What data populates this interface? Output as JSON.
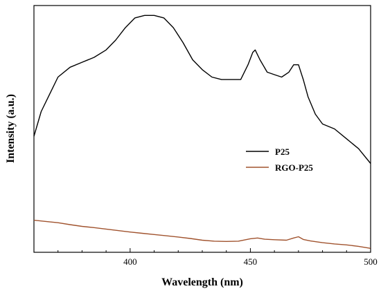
{
  "chart_data": {
    "type": "line",
    "xlabel": "Wavelength (nm)",
    "ylabel": "Intensity (a.u.)",
    "xlim": [
      360,
      500
    ],
    "ylim": [
      0,
      100
    ],
    "x_ticks": [
      400,
      450,
      500
    ],
    "y_ticks_shown": false,
    "grid": false,
    "legend": {
      "placement": "right-center"
    },
    "series": [
      {
        "name": "P25",
        "color": "#000000",
        "x": [
          360,
          363,
          366,
          370,
          375,
          380,
          385,
          390,
          394,
          398,
          402,
          406,
          410,
          414,
          418,
          422,
          426,
          430,
          434,
          438,
          442,
          446,
          449,
          451,
          452,
          454,
          457,
          460,
          463,
          466,
          468,
          470,
          472,
          474,
          477,
          480,
          485,
          490,
          495,
          500
        ],
        "y": [
          47,
          57,
          63,
          71,
          75,
          77,
          79,
          82,
          86,
          91,
          95,
          96,
          96,
          95,
          91,
          85,
          78,
          74,
          71,
          70,
          70,
          70,
          76,
          81,
          82,
          78,
          73,
          72,
          71,
          73,
          76,
          76,
          70,
          63,
          56,
          52,
          50,
          46,
          42,
          36
        ]
      },
      {
        "name": "RGO-P25",
        "color": "#a0522d",
        "x": [
          360,
          365,
          370,
          375,
          380,
          385,
          390,
          395,
          400,
          405,
          410,
          415,
          420,
          425,
          430,
          435,
          440,
          445,
          450,
          453,
          456,
          460,
          465,
          468,
          470,
          472,
          475,
          480,
          485,
          490,
          495,
          500
        ],
        "y": [
          13,
          12.5,
          12,
          11.2,
          10.5,
          10,
          9.4,
          8.8,
          8.2,
          7.7,
          7.2,
          6.7,
          6.2,
          5.6,
          4.9,
          4.5,
          4.4,
          4.5,
          5.5,
          5.8,
          5.3,
          5.1,
          4.9,
          5.8,
          6.3,
          5.2,
          4.6,
          3.9,
          3.4,
          3.0,
          2.4,
          1.6
        ]
      }
    ]
  }
}
